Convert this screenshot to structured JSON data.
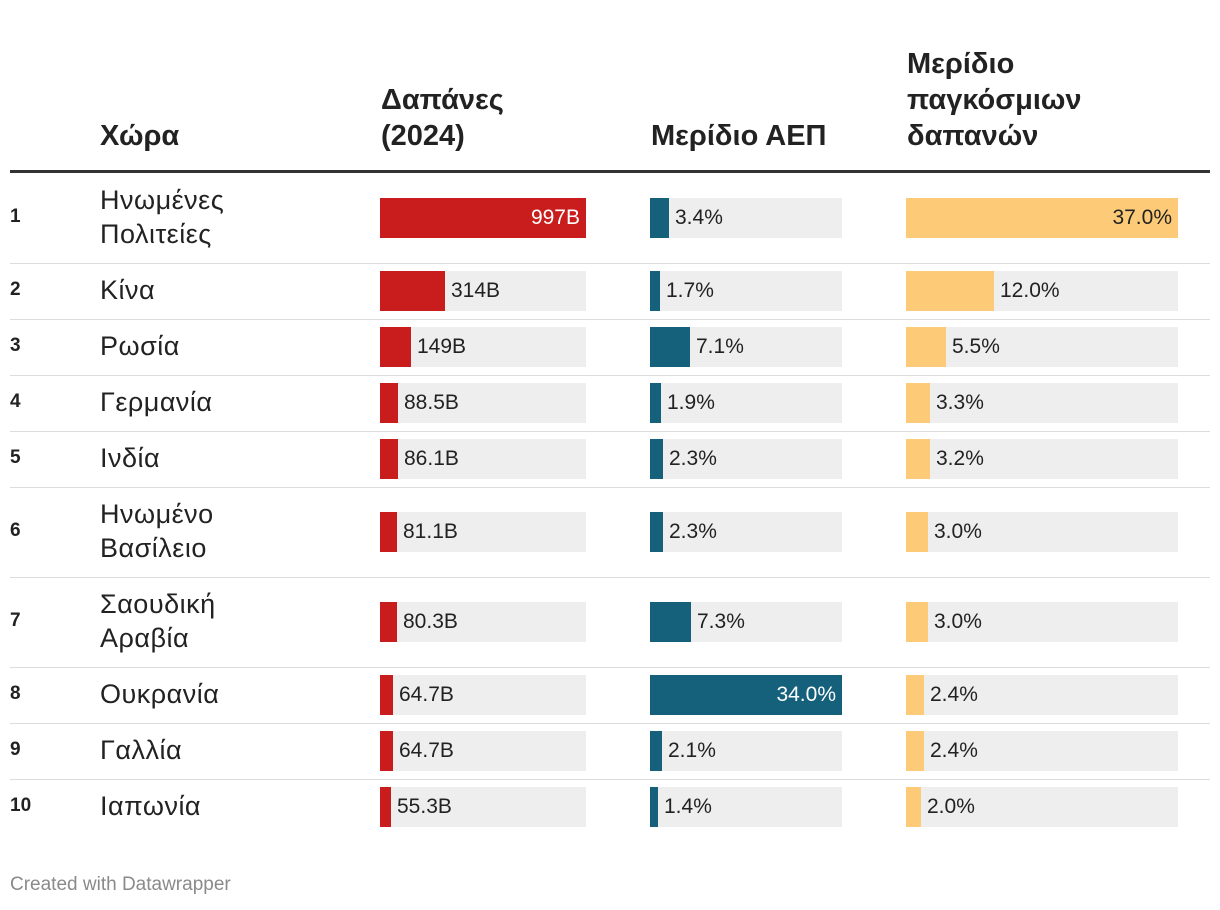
{
  "chart_data": {
    "type": "table",
    "title": "",
    "columns": {
      "rank": "",
      "country": "Χώρα",
      "spending": [
        "Δαπάνες",
        "(2024)"
      ],
      "gdp_share": "Μερίδιο ΑΕΠ",
      "world_share": [
        "Μερίδιο",
        "παγκόσμιων",
        "δαπανών"
      ]
    },
    "colors": {
      "spending": "#c91d1d",
      "gdp_share": "#15607a",
      "world_share": "#fdca77",
      "track": "#eeeeee"
    },
    "spending_max": 997,
    "gdp_max": 34.0,
    "world_max": 37.0,
    "rows": [
      {
        "rank": "1",
        "country": [
          "Ηνωμένες",
          "Πολιτείες"
        ],
        "spending": 997,
        "spending_label": "997B",
        "gdp": 3.4,
        "gdp_label": "3.4%",
        "world": 37.0,
        "world_label": "37.0%"
      },
      {
        "rank": "2",
        "country": [
          "Κίνα"
        ],
        "spending": 314,
        "spending_label": "314B",
        "gdp": 1.7,
        "gdp_label": "1.7%",
        "world": 12.0,
        "world_label": "12.0%"
      },
      {
        "rank": "3",
        "country": [
          "Ρωσία"
        ],
        "spending": 149,
        "spending_label": "149B",
        "gdp": 7.1,
        "gdp_label": "7.1%",
        "world": 5.5,
        "world_label": "5.5%"
      },
      {
        "rank": "4",
        "country": [
          "Γερμανία"
        ],
        "spending": 88.5,
        "spending_label": "88.5B",
        "gdp": 1.9,
        "gdp_label": "1.9%",
        "world": 3.3,
        "world_label": "3.3%"
      },
      {
        "rank": "5",
        "country": [
          "Ινδία"
        ],
        "spending": 86.1,
        "spending_label": "86.1B",
        "gdp": 2.3,
        "gdp_label": "2.3%",
        "world": 3.2,
        "world_label": "3.2%"
      },
      {
        "rank": "6",
        "country": [
          "Ηνωμένο",
          "Βασίλειο"
        ],
        "spending": 81.1,
        "spending_label": "81.1B",
        "gdp": 2.3,
        "gdp_label": "2.3%",
        "world": 3.0,
        "world_label": "3.0%"
      },
      {
        "rank": "7",
        "country": [
          "Σαουδική",
          "Αραβία"
        ],
        "spending": 80.3,
        "spending_label": "80.3B",
        "gdp": 7.3,
        "gdp_label": "7.3%",
        "world": 3.0,
        "world_label": "3.0%"
      },
      {
        "rank": "8",
        "country": [
          "Ουκρανία"
        ],
        "spending": 64.7,
        "spending_label": "64.7B",
        "gdp": 34.0,
        "gdp_label": "34.0%",
        "world": 2.4,
        "world_label": "2.4%"
      },
      {
        "rank": "9",
        "country": [
          "Γαλλία"
        ],
        "spending": 64.7,
        "spending_label": "64.7B",
        "gdp": 2.1,
        "gdp_label": "2.1%",
        "world": 2.4,
        "world_label": "2.4%"
      },
      {
        "rank": "10",
        "country": [
          "Ιαπωνία"
        ],
        "spending": 55.3,
        "spending_label": "55.3B",
        "gdp": 1.4,
        "gdp_label": "1.4%",
        "world": 2.0,
        "world_label": "2.0%"
      }
    ]
  },
  "footer": "Created with Datawrapper"
}
